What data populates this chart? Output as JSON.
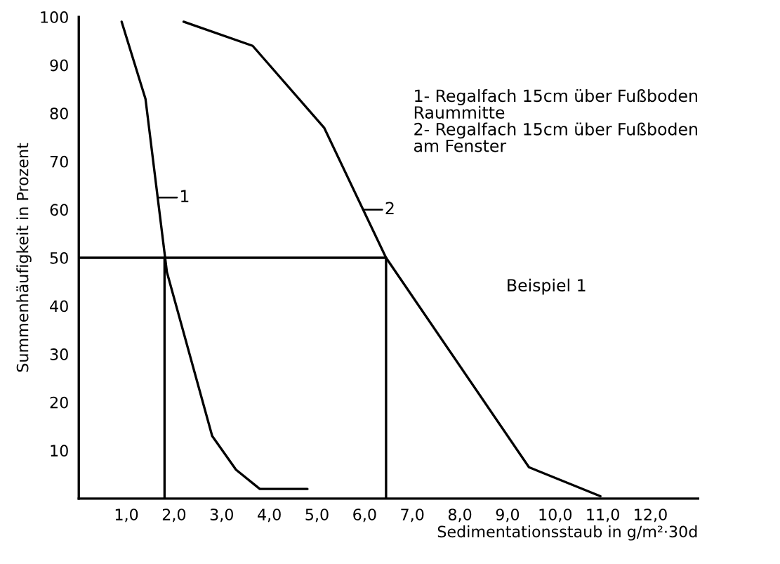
{
  "chart_data": {
    "type": "line",
    "xlabel": "Sedimentationsstaub in g/m²·30d",
    "ylabel": "Summenhäufigkeit in Prozent",
    "series": [
      {
        "color": "#000000",
        "x": [
          0.9,
          1.4,
          1.85,
          2.8,
          3.3,
          3.8,
          4.8
        ],
        "values": [
          99,
          83,
          47,
          13,
          6,
          2,
          2
        ]
      },
      {
        "color": "#000000",
        "x": [
          2.2,
          3.65,
          5.15,
          6.45,
          9.45,
          10.95
        ],
        "values": [
          99,
          94,
          77,
          50,
          6.5,
          0.5
        ]
      },
      {
        "color": "#000000",
        "x": [
          1.8,
          1.8
        ],
        "values": [
          50,
          0
        ]
      },
      {
        "color": "#000000",
        "x": [
          0,
          6.45,
          6.45
        ],
        "values": [
          50,
          50,
          0
        ]
      }
    ],
    "xlim": [
      0,
      13
    ],
    "ylim": [
      0,
      100
    ],
    "xticks": [
      {
        "value": 1,
        "label": "1,0"
      },
      {
        "value": 2,
        "label": "2,0"
      },
      {
        "value": 3,
        "label": "3,0"
      },
      {
        "value": 4,
        "label": "4,0"
      },
      {
        "value": 5,
        "label": "5,0"
      },
      {
        "value": 6,
        "label": "6,0"
      },
      {
        "value": 7,
        "label": "7,0"
      },
      {
        "value": 8,
        "label": "8,0"
      },
      {
        "value": 9,
        "label": "9,0"
      },
      {
        "value": 10,
        "label": "10,0"
      },
      {
        "value": 11,
        "label": "11,0"
      },
      {
        "value": 12,
        "label": "12,0"
      }
    ],
    "yticks": [
      10,
      20,
      30,
      40,
      50,
      60,
      70,
      80,
      90,
      100
    ],
    "annotations": [
      {
        "text": "1",
        "x": 1.66,
        "y": 62.5
      },
      {
        "text": "2",
        "x": 5.97,
        "y": 60
      },
      "1- Regalfach 15cm über Fußboden\nRaummitte\n2- Regalfach 15cm über Fußboden\nam Fenster",
      "Beispiel 1"
    ]
  }
}
